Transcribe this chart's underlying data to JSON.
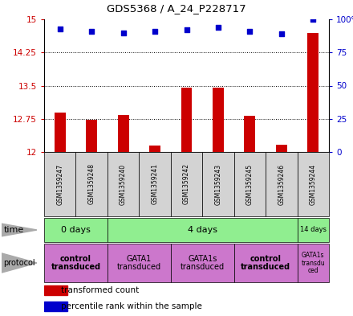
{
  "title": "GDS5368 / A_24_P228717",
  "samples": [
    "GSM1359247",
    "GSM1359248",
    "GSM1359240",
    "GSM1359241",
    "GSM1359242",
    "GSM1359243",
    "GSM1359245",
    "GSM1359246",
    "GSM1359244"
  ],
  "transformed_counts": [
    12.9,
    12.72,
    12.83,
    12.15,
    13.45,
    13.45,
    12.82,
    12.17,
    14.7
  ],
  "percentile_ranks": [
    93,
    91,
    90,
    91,
    92,
    94,
    91,
    89,
    100
  ],
  "ylim_left": [
    12,
    15
  ],
  "ylim_right": [
    0,
    100
  ],
  "yticks_left": [
    12,
    12.75,
    13.5,
    14.25,
    15
  ],
  "yticks_right": [
    0,
    25,
    50,
    75,
    100
  ],
  "bar_color": "#cc0000",
  "dot_color": "#0000cc",
  "sample_bg": "#d3d3d3",
  "plot_bg": "#ffffff",
  "green": "#90ee90",
  "orchid": "#cc77cc",
  "time_groups": [
    {
      "label": "0 days",
      "start": 0,
      "end": 2
    },
    {
      "label": "4 days",
      "start": 2,
      "end": 8
    },
    {
      "label": "14 days",
      "start": 8,
      "end": 9
    }
  ],
  "proto_groups": [
    {
      "label": "control\ntransduced",
      "start": 0,
      "end": 2,
      "bold": true
    },
    {
      "label": "GATA1\ntransduced",
      "start": 2,
      "end": 4,
      "bold": false
    },
    {
      "label": "GATA1s\ntransduced",
      "start": 4,
      "end": 6,
      "bold": false
    },
    {
      "label": "control\ntransduced",
      "start": 6,
      "end": 8,
      "bold": true
    },
    {
      "label": "GATA1s\ntransdu\nced",
      "start": 8,
      "end": 9,
      "bold": false
    }
  ]
}
